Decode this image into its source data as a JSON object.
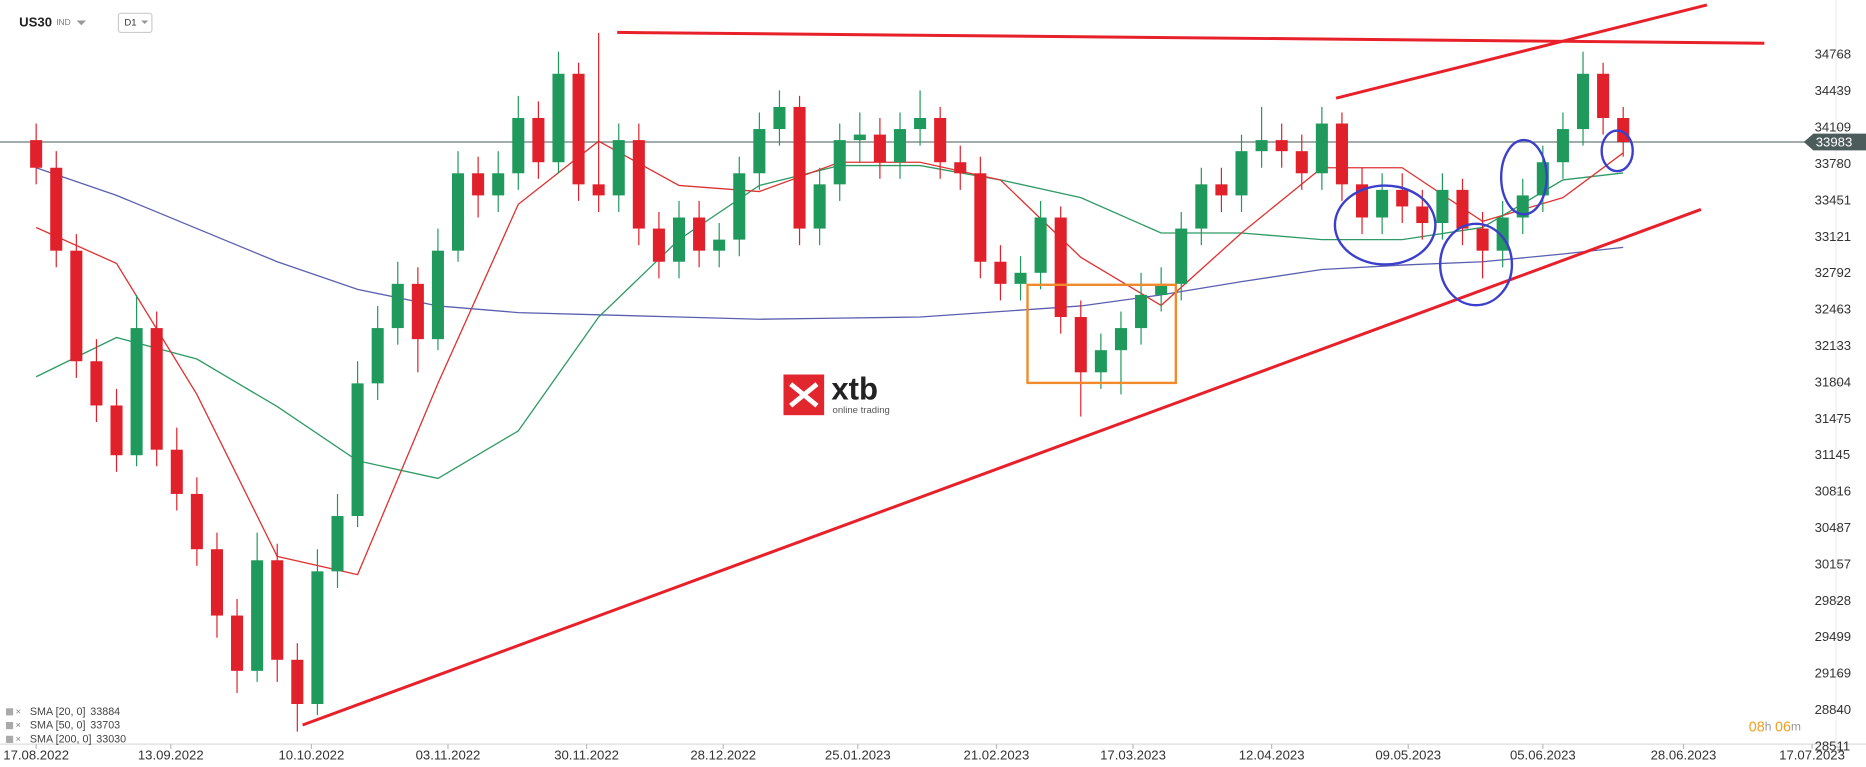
{
  "header": {
    "symbol": "US30",
    "market": "IND",
    "interval": "D1"
  },
  "logo": {
    "brand": "xtb",
    "tagline": "online trading"
  },
  "timer": {
    "hours": "08",
    "hours_unit": "h",
    "minutes": "06",
    "minutes_unit": "m"
  },
  "chart_data": {
    "type": "candlestick",
    "x": [
      0,
      1,
      2,
      3,
      4,
      5,
      6,
      7,
      8,
      9,
      10,
      11,
      12,
      13,
      14,
      15,
      16,
      17,
      18,
      19,
      20,
      21,
      22,
      23,
      24,
      25,
      26,
      27,
      28,
      29,
      30,
      31,
      32,
      33,
      34,
      35,
      36,
      37,
      38,
      39,
      40,
      41,
      42,
      43,
      44,
      45,
      46,
      47,
      48,
      49,
      50,
      51,
      52,
      53,
      54,
      55,
      56,
      57,
      58,
      59,
      60,
      61,
      62,
      63,
      64,
      65,
      66,
      67,
      68,
      69,
      70,
      71,
      72,
      73,
      74,
      75,
      76,
      77,
      78,
      79
    ],
    "open": [
      34000,
      33750,
      33000,
      32000,
      31600,
      31150,
      32300,
      31200,
      30800,
      30300,
      29700,
      29200,
      30200,
      29300,
      28900,
      30100,
      30600,
      31800,
      32300,
      32700,
      32200,
      33000,
      33700,
      33500,
      33700,
      34200,
      33800,
      34600,
      33600,
      33500,
      34000,
      33200,
      32900,
      33300,
      33000,
      33100,
      33700,
      34100,
      34300,
      33200,
      33600,
      34000,
      34050,
      33800,
      34100,
      34200,
      33800,
      33700,
      32900,
      32700,
      32800,
      33300,
      32400,
      31900,
      32100,
      32300,
      32600,
      32700,
      33200,
      33600,
      33500,
      33900,
      34000,
      33900,
      33700,
      34150,
      33600,
      33300,
      33550,
      33400,
      33250,
      33550,
      33200,
      33000,
      33300,
      33500,
      33800,
      34100,
      34600,
      34200
    ],
    "high": [
      34150,
      33900,
      33150,
      32200,
      31750,
      32600,
      32450,
      31400,
      30950,
      30450,
      29850,
      30450,
      30350,
      29450,
      30300,
      30800,
      32000,
      32500,
      32900,
      32850,
      33200,
      33900,
      33850,
      33900,
      34400,
      34350,
      34800,
      34700,
      34970,
      34150,
      34150,
      33350,
      33450,
      33450,
      33250,
      33850,
      34250,
      34450,
      34400,
      33750,
      34150,
      34250,
      34200,
      34250,
      34450,
      34300,
      33950,
      33850,
      33050,
      32950,
      33450,
      33400,
      32550,
      32250,
      32450,
      32800,
      32850,
      33350,
      33750,
      33750,
      34050,
      34300,
      34150,
      34050,
      34300,
      34250,
      33750,
      33700,
      33700,
      33550,
      33700,
      33650,
      33350,
      33450,
      33650,
      33950,
      34250,
      34800,
      34700,
      34300
    ],
    "low": [
      33600,
      32850,
      31850,
      31450,
      31000,
      31050,
      31050,
      30650,
      30150,
      29500,
      29000,
      29100,
      29100,
      28650,
      28800,
      29950,
      30500,
      31650,
      32150,
      31900,
      32100,
      32900,
      33300,
      33350,
      33550,
      33650,
      33700,
      33450,
      33350,
      33350,
      33050,
      32750,
      32750,
      32850,
      32850,
      32950,
      33550,
      33950,
      33050,
      33050,
      33450,
      33800,
      33650,
      33650,
      33950,
      33650,
      33550,
      32750,
      32550,
      32550,
      32650,
      32250,
      31500,
      31750,
      31700,
      32150,
      32450,
      32550,
      33050,
      33350,
      33350,
      33750,
      33750,
      33550,
      33550,
      33450,
      33150,
      33150,
      33250,
      33100,
      33100,
      33050,
      32750,
      32850,
      33150,
      33350,
      33650,
      33950,
      34050,
      33850
    ],
    "close": [
      33750,
      33000,
      32000,
      31600,
      31150,
      32300,
      31200,
      30800,
      30300,
      29700,
      29200,
      30200,
      29300,
      28900,
      30100,
      30600,
      31800,
      32300,
      32700,
      32200,
      33000,
      33700,
      33500,
      33700,
      34200,
      33800,
      34600,
      33600,
      33500,
      34000,
      33200,
      32900,
      33300,
      33000,
      33100,
      33700,
      34100,
      34300,
      33200,
      33600,
      34000,
      34050,
      33800,
      34100,
      34200,
      33800,
      33700,
      32900,
      32700,
      32800,
      33300,
      32400,
      31900,
      32100,
      32300,
      32600,
      32700,
      33200,
      33600,
      33500,
      33900,
      34000,
      33900,
      33700,
      34150,
      33600,
      33300,
      33550,
      33400,
      33250,
      33550,
      33200,
      33000,
      33300,
      33500,
      33800,
      34100,
      34600,
      34200,
      33983
    ],
    "up_color": "#1f9a5c",
    "down_color": "#e0202b",
    "last_price": 33983,
    "series": [
      {
        "name": "SMA [200, 0]",
        "color": "#5b5fb0",
        "last_value": 33030,
        "x": [
          0,
          4,
          8,
          12,
          16,
          20,
          24,
          28,
          32,
          36,
          40,
          44,
          48,
          52,
          56,
          60,
          64,
          68,
          72,
          76,
          79
        ],
        "values": [
          33750,
          33500,
          33200,
          32900,
          32650,
          32500,
          32440,
          32420,
          32400,
          32380,
          32390,
          32400,
          32450,
          32500,
          32600,
          32720,
          32830,
          32870,
          32900,
          32970,
          33030
        ]
      },
      {
        "name": "SMA [50, 0]",
        "color": "#2f9a66",
        "last_value": 33703,
        "x": [
          0,
          4,
          8,
          12,
          16,
          20,
          24,
          28,
          32,
          36,
          40,
          44,
          48,
          52,
          56,
          60,
          64,
          68,
          72,
          76,
          79
        ],
        "values": [
          31860,
          32215,
          32020,
          31590,
          31100,
          30940,
          31370,
          32400,
          33100,
          33590,
          33770,
          33770,
          33640,
          33480,
          33160,
          33160,
          33100,
          33100,
          33210,
          33640,
          33703
        ]
      },
      {
        "name": "SMA [20, 0]",
        "color": "#dd3333",
        "last_value": 33884,
        "x": [
          0,
          4,
          8,
          12,
          16,
          20,
          24,
          28,
          32,
          36,
          40,
          44,
          48,
          52,
          56,
          60,
          64,
          68,
          72,
          76,
          79
        ],
        "values": [
          33210,
          32885,
          31700,
          30235,
          30070,
          31800,
          33420,
          33990,
          33590,
          33535,
          33800,
          33800,
          33640,
          32940,
          32505,
          33160,
          33750,
          33750,
          33265,
          33480,
          33884
        ]
      }
    ],
    "xlim": [
      -1.8,
      89.3
    ],
    "xticks": [
      {
        "value": 0,
        "label": "17.08.2022"
      },
      {
        "value": 6.7,
        "label": "13.09.2022"
      },
      {
        "value": 13.7,
        "label": "10.10.2022"
      },
      {
        "value": 20.5,
        "label": "03.11.2022"
      },
      {
        "value": 27.4,
        "label": "30.11.2022"
      },
      {
        "value": 34.2,
        "label": "28.12.2022"
      },
      {
        "value": 40.9,
        "label": "25.01.2023"
      },
      {
        "value": 47.8,
        "label": "21.02.2023"
      },
      {
        "value": 54.6,
        "label": "17.03.2023"
      },
      {
        "value": 61.5,
        "label": "12.04.2023"
      },
      {
        "value": 68.3,
        "label": "09.05.2023"
      },
      {
        "value": 75,
        "label": "05.06.2023"
      },
      {
        "value": 82,
        "label": "28.06.2023"
      },
      {
        "value": 88.4,
        "label": "17.07.2023"
      }
    ],
    "ylim": [
      28483,
      35266
    ],
    "yticks": [
      28511,
      28840,
      29169,
      29499,
      29828,
      30157,
      30487,
      30816,
      31145,
      31475,
      31804,
      32133,
      32463,
      32792,
      33121,
      33451,
      33780,
      34109,
      34439,
      34768
    ]
  }
}
